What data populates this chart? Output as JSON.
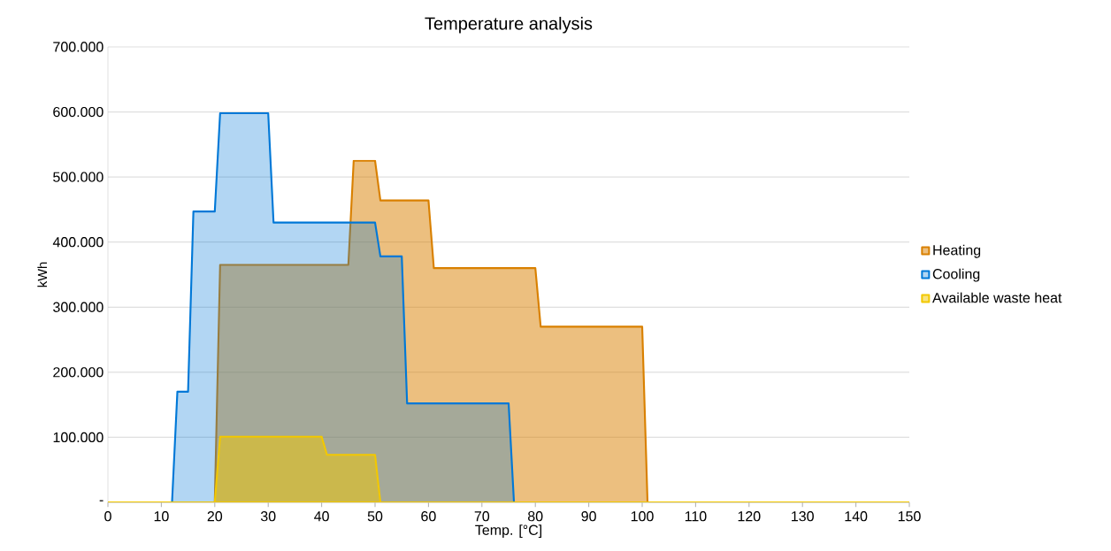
{
  "chart_data": {
    "type": "area",
    "title": "Temperature analysis",
    "xlabel": "Temp. [°C]",
    "ylabel": "kWh",
    "xlim": [
      0,
      150
    ],
    "xticks": [
      0,
      10,
      20,
      30,
      40,
      50,
      60,
      70,
      80,
      90,
      100,
      110,
      120,
      130,
      140,
      150
    ],
    "ylim": [
      0,
      700000
    ],
    "yticks": [
      {
        "value": 0,
        "label": "-"
      },
      {
        "value": 100000,
        "label": "100.000"
      },
      {
        "value": 200000,
        "label": "200.000"
      },
      {
        "value": 300000,
        "label": "300.000"
      },
      {
        "value": 400000,
        "label": "400.000"
      },
      {
        "value": 500000,
        "label": "500.000"
      },
      {
        "value": 600000,
        "label": "600.000"
      },
      {
        "value": 700000,
        "label": "700.000"
      }
    ],
    "grid": "y",
    "legend": "right",
    "series": [
      {
        "name": "Heating",
        "color": "#d98000",
        "x": [
          0,
          20,
          21,
          45,
          46,
          50,
          51,
          60,
          61,
          80,
          81,
          100,
          101,
          150
        ],
        "values": [
          0,
          0,
          365000,
          365000,
          525000,
          525000,
          464000,
          464000,
          360000,
          360000,
          270000,
          270000,
          0,
          0
        ]
      },
      {
        "name": "Cooling",
        "color": "#0078d7",
        "x": [
          0,
          12,
          13,
          15,
          16,
          20,
          21,
          30,
          31,
          50,
          51,
          55,
          56,
          75,
          76,
          150
        ],
        "values": [
          0,
          0,
          170000,
          170000,
          447000,
          447000,
          598000,
          598000,
          430000,
          430000,
          378000,
          378000,
          152000,
          152000,
          0,
          0
        ]
      },
      {
        "name": "Available waste heat",
        "color": "#f2c800",
        "x": [
          0,
          20,
          21,
          40,
          41,
          50,
          51,
          150
        ],
        "values": [
          0,
          0,
          101000,
          101000,
          73000,
          73000,
          0,
          0
        ]
      }
    ]
  }
}
